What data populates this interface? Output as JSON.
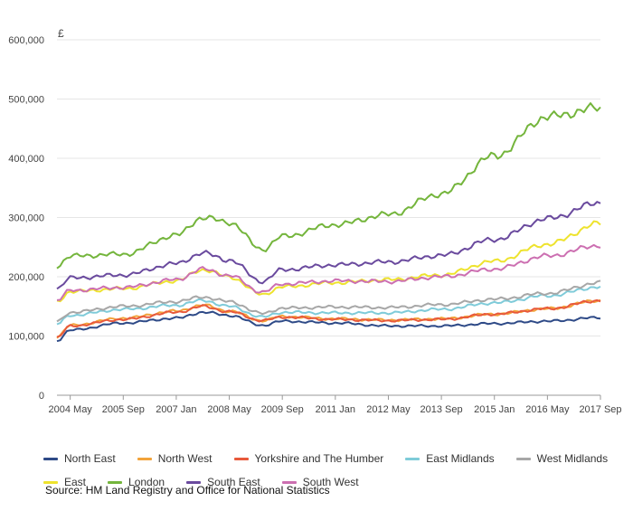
{
  "chart_data": {
    "type": "line",
    "unit_label": "£",
    "ylim": [
      0,
      600000
    ],
    "y_ticks": [
      "0",
      "100,000",
      "200,000",
      "300,000",
      "400,000",
      "500,000",
      "600,000"
    ],
    "x_ticks": [
      "2004 May",
      "2005 Sep",
      "2007 Jan",
      "2008 May",
      "2009 Sep",
      "2011 Jan",
      "2012 May",
      "2013 Sep",
      "2015 Jan",
      "2016 May",
      "2017 Sep"
    ],
    "x_range": [
      "2004-01",
      "2017-09"
    ],
    "grid": "horizontal",
    "legend_position": "bottom",
    "x_keyframes": [
      "2004-01",
      "2004-05",
      "2005-09",
      "2007-01",
      "2007-09",
      "2008-05",
      "2009-03",
      "2009-09",
      "2011-01",
      "2012-05",
      "2013-09",
      "2015-01",
      "2016-05",
      "2017-09"
    ],
    "series": [
      {
        "name": "North East",
        "color": "#2e4a87",
        "values": [
          92000,
          110000,
          122000,
          130000,
          140000,
          135000,
          118000,
          125000,
          122000,
          117000,
          117000,
          121000,
          125000,
          131000
        ]
      },
      {
        "name": "North West",
        "color": "#f2a33a",
        "values": [
          98000,
          118000,
          130000,
          142000,
          152000,
          142000,
          126000,
          133000,
          129000,
          127000,
          129000,
          137000,
          146000,
          160000
        ]
      },
      {
        "name": "Yorkshire and The Humber",
        "color": "#e8593b",
        "values": [
          97000,
          117000,
          128000,
          140000,
          150000,
          141000,
          126000,
          132000,
          128000,
          126000,
          128000,
          137000,
          146000,
          160000
        ]
      },
      {
        "name": "East Midlands",
        "color": "#7fcbd9",
        "values": [
          120000,
          135000,
          145000,
          152000,
          160000,
          150000,
          132000,
          140000,
          139000,
          139000,
          145000,
          156000,
          168000,
          183000
        ]
      },
      {
        "name": "West Midlands",
        "color": "#a7a7a7",
        "values": [
          124000,
          140000,
          150000,
          158000,
          166000,
          158000,
          138000,
          147000,
          149000,
          148000,
          153000,
          162000,
          172000,
          190000
        ]
      },
      {
        "name": "East",
        "color": "#eee32e",
        "values": [
          158000,
          175000,
          180000,
          193000,
          212000,
          200000,
          170000,
          183000,
          190000,
          195000,
          203000,
          226000,
          255000,
          290000
        ]
      },
      {
        "name": "London",
        "color": "#74b53c",
        "values": [
          218000,
          235000,
          238000,
          270000,
          300000,
          292000,
          246000,
          268000,
          288000,
          305000,
          340000,
          404000,
          470000,
          485000
        ]
      },
      {
        "name": "South East",
        "color": "#6a4a9e",
        "values": [
          180000,
          198000,
          203000,
          222000,
          240000,
          228000,
          192000,
          212000,
          220000,
          225000,
          236000,
          263000,
          298000,
          325000
        ]
      },
      {
        "name": "South West",
        "color": "#cc6fb1",
        "values": [
          160000,
          177000,
          182000,
          195000,
          213000,
          202000,
          174000,
          188000,
          193000,
          192000,
          200000,
          213000,
          235000,
          253000
        ]
      }
    ]
  },
  "source": "Source: HM Land Registry and Office for National Statistics"
}
